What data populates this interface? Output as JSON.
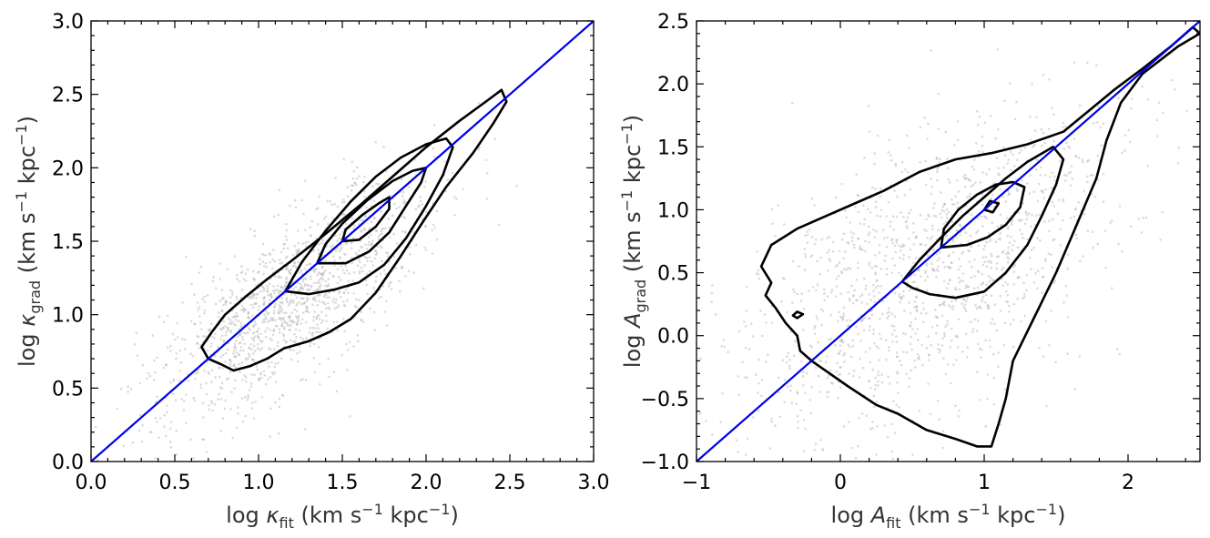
{
  "chart_data": [
    {
      "type": "scatter",
      "title": "",
      "xlabel": {
        "prefix": "log ",
        "symbol": "κ",
        "sub": "fit",
        "units": " (km s",
        "exp": "−1",
        "units2": " kpc",
        "exp2": "−1",
        "close": ")"
      },
      "ylabel": {
        "prefix": "log ",
        "symbol": "κ",
        "sub": "grad",
        "units": " (km s",
        "exp": "−1",
        "units2": " kpc",
        "exp2": "−1",
        "close": ")"
      },
      "xlim": [
        0,
        3
      ],
      "ylim": [
        0,
        3
      ],
      "xticks": [
        "0.0",
        "0.5",
        "1.0",
        "1.5",
        "2.0",
        "2.5",
        "3.0"
      ],
      "xtick_values": [
        0,
        0.5,
        1,
        1.5,
        2,
        2.5,
        3
      ],
      "yticks": [
        "0.0",
        "0.5",
        "1.0",
        "1.5",
        "2.0",
        "2.5",
        "3.0"
      ],
      "ytick_values": [
        0,
        0.5,
        1,
        1.5,
        2,
        2.5,
        3
      ],
      "grid": false,
      "reference_line": {
        "from": [
          0,
          0
        ],
        "to": [
          3,
          3
        ],
        "color": "#0000e6"
      },
      "scatter_cloud": {
        "center": [
          1.2,
          1.1
        ],
        "spread_along": 0.55,
        "spread_across": 0.2,
        "color": "#b0b0b0"
      },
      "contours": [
        [
          [
            0.7,
            0.7
          ],
          [
            0.66,
            0.78
          ],
          [
            0.72,
            0.88
          ],
          [
            0.8,
            1.0
          ],
          [
            0.92,
            1.12
          ],
          [
            1.05,
            1.24
          ],
          [
            1.2,
            1.37
          ],
          [
            1.4,
            1.55
          ],
          [
            1.6,
            1.74
          ],
          [
            1.8,
            1.94
          ],
          [
            2.0,
            2.14
          ],
          [
            2.2,
            2.32
          ],
          [
            2.38,
            2.47
          ],
          [
            2.45,
            2.53
          ],
          [
            2.48,
            2.45
          ],
          [
            2.4,
            2.3
          ],
          [
            2.28,
            2.1
          ],
          [
            2.12,
            1.87
          ],
          [
            1.98,
            1.63
          ],
          [
            1.85,
            1.4
          ],
          [
            1.7,
            1.15
          ],
          [
            1.55,
            0.97
          ],
          [
            1.42,
            0.88
          ],
          [
            1.3,
            0.82
          ],
          [
            1.15,
            0.77
          ],
          [
            1.05,
            0.7
          ],
          [
            0.95,
            0.65
          ],
          [
            0.85,
            0.62
          ],
          [
            0.78,
            0.66
          ],
          [
            0.7,
            0.7
          ]
        ],
        [
          [
            1.16,
            1.16
          ],
          [
            1.26,
            1.36
          ],
          [
            1.4,
            1.57
          ],
          [
            1.55,
            1.77
          ],
          [
            1.7,
            1.94
          ],
          [
            1.85,
            2.07
          ],
          [
            2.0,
            2.16
          ],
          [
            2.12,
            2.2
          ],
          [
            2.16,
            2.14
          ],
          [
            2.1,
            1.95
          ],
          [
            2.0,
            1.74
          ],
          [
            1.88,
            1.52
          ],
          [
            1.75,
            1.34
          ],
          [
            1.6,
            1.22
          ],
          [
            1.45,
            1.17
          ],
          [
            1.3,
            1.14
          ],
          [
            1.16,
            1.16
          ]
        ],
        [
          [
            1.35,
            1.35
          ],
          [
            1.4,
            1.48
          ],
          [
            1.5,
            1.62
          ],
          [
            1.65,
            1.78
          ],
          [
            1.8,
            1.91
          ],
          [
            1.92,
            1.98
          ],
          [
            2.0,
            2.0
          ],
          [
            1.97,
            1.9
          ],
          [
            1.88,
            1.74
          ],
          [
            1.78,
            1.56
          ],
          [
            1.66,
            1.43
          ],
          [
            1.52,
            1.35
          ],
          [
            1.35,
            1.35
          ]
        ],
        [
          [
            1.5,
            1.5
          ],
          [
            1.52,
            1.58
          ],
          [
            1.62,
            1.68
          ],
          [
            1.72,
            1.76
          ],
          [
            1.78,
            1.8
          ],
          [
            1.78,
            1.72
          ],
          [
            1.7,
            1.6
          ],
          [
            1.6,
            1.51
          ],
          [
            1.5,
            1.5
          ]
        ]
      ]
    },
    {
      "type": "scatter",
      "title": "",
      "xlabel": {
        "prefix": "log ",
        "symbol": "A",
        "sub": "fit",
        "units": " (km s",
        "exp": "−1",
        "units2": " kpc",
        "exp2": "−1",
        "close": ")"
      },
      "ylabel": {
        "prefix": "log ",
        "symbol": "A",
        "sub": "grad",
        "units": " (km s",
        "exp": "−1",
        "units2": " kpc",
        "exp2": "−1",
        "close": ")"
      },
      "xlim": [
        -1,
        2.5
      ],
      "ylim": [
        -1,
        2.5
      ],
      "xticks": [
        "−1",
        "0",
        "1",
        "2"
      ],
      "xtick_values": [
        -1,
        0,
        1,
        2
      ],
      "yticks": [
        "−1.0",
        "−0.5",
        "0.0",
        "0.5",
        "1.0",
        "1.5",
        "2.0",
        "2.5"
      ],
      "ytick_values": [
        -1,
        -0.5,
        0,
        0.5,
        1,
        1.5,
        2,
        2.5
      ],
      "grid": false,
      "reference_line": {
        "from": [
          -1,
          -1
        ],
        "to": [
          2.5,
          2.5
        ],
        "color": "#0000e6"
      },
      "scatter_cloud": {
        "center": [
          0.6,
          0.5
        ],
        "spread_along": 0.8,
        "spread_across": 0.45,
        "color": "#b0b0b0"
      },
      "contours": [
        [
          [
            -0.2,
            -0.2
          ],
          [
            -0.28,
            -0.12
          ],
          [
            -0.3,
            0.0
          ],
          [
            -0.38,
            0.1
          ],
          [
            -0.45,
            0.22
          ],
          [
            -0.52,
            0.32
          ],
          [
            -0.48,
            0.42
          ],
          [
            -0.55,
            0.55
          ],
          [
            -0.48,
            0.72
          ],
          [
            -0.3,
            0.85
          ],
          [
            -0.1,
            0.95
          ],
          [
            0.1,
            1.05
          ],
          [
            0.3,
            1.15
          ],
          [
            0.55,
            1.3
          ],
          [
            0.8,
            1.4
          ],
          [
            1.05,
            1.45
          ],
          [
            1.3,
            1.52
          ],
          [
            1.55,
            1.62
          ],
          [
            1.72,
            1.78
          ],
          [
            1.9,
            1.95
          ],
          [
            2.1,
            2.12
          ],
          [
            2.3,
            2.3
          ],
          [
            2.45,
            2.45
          ],
          [
            2.5,
            2.4
          ],
          [
            2.35,
            2.3
          ],
          [
            2.1,
            2.08
          ],
          [
            1.95,
            1.85
          ],
          [
            1.85,
            1.55
          ],
          [
            1.78,
            1.25
          ],
          [
            1.65,
            0.9
          ],
          [
            1.5,
            0.5
          ],
          [
            1.35,
            0.15
          ],
          [
            1.2,
            -0.2
          ],
          [
            1.15,
            -0.5
          ],
          [
            1.1,
            -0.7
          ],
          [
            1.05,
            -0.88
          ],
          [
            0.95,
            -0.88
          ],
          [
            0.8,
            -0.82
          ],
          [
            0.6,
            -0.75
          ],
          [
            0.4,
            -0.62
          ],
          [
            0.25,
            -0.55
          ],
          [
            0.05,
            -0.4
          ],
          [
            -0.1,
            -0.28
          ],
          [
            -0.2,
            -0.2
          ]
        ],
        [
          [
            0.43,
            0.43
          ],
          [
            0.55,
            0.6
          ],
          [
            0.7,
            0.78
          ],
          [
            0.85,
            0.95
          ],
          [
            1.0,
            1.1
          ],
          [
            1.15,
            1.25
          ],
          [
            1.3,
            1.38
          ],
          [
            1.48,
            1.5
          ],
          [
            1.55,
            1.4
          ],
          [
            1.5,
            1.2
          ],
          [
            1.4,
            0.95
          ],
          [
            1.3,
            0.72
          ],
          [
            1.15,
            0.5
          ],
          [
            1.0,
            0.35
          ],
          [
            0.8,
            0.3
          ],
          [
            0.62,
            0.33
          ],
          [
            0.5,
            0.38
          ],
          [
            0.43,
            0.43
          ]
        ],
        [
          [
            0.7,
            0.7
          ],
          [
            0.72,
            0.85
          ],
          [
            0.82,
            1.0
          ],
          [
            0.95,
            1.12
          ],
          [
            1.08,
            1.2
          ],
          [
            1.2,
            1.22
          ],
          [
            1.28,
            1.18
          ],
          [
            1.25,
            1.02
          ],
          [
            1.15,
            0.88
          ],
          [
            1.02,
            0.78
          ],
          [
            0.88,
            0.72
          ],
          [
            0.7,
            0.7
          ]
        ],
        [
          [
            1.0,
            1.0
          ],
          [
            1.04,
            1.07
          ],
          [
            1.1,
            1.05
          ],
          [
            1.06,
            0.98
          ],
          [
            1.0,
            1.0
          ]
        ],
        [
          [
            -0.33,
            0.16
          ],
          [
            -0.3,
            0.19
          ],
          [
            -0.26,
            0.17
          ],
          [
            -0.3,
            0.14
          ],
          [
            -0.33,
            0.16
          ]
        ]
      ]
    }
  ]
}
